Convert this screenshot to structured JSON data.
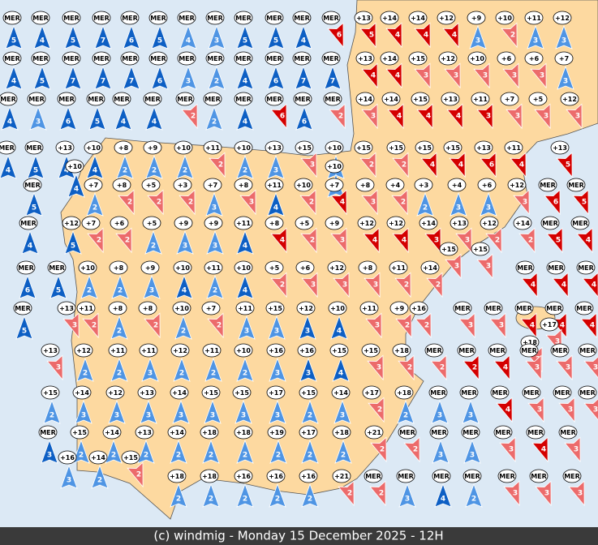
{
  "colors": [
    "#0d5fc4",
    "#4f95e4",
    "#ec6b6b",
    "#d40000"
  ],
  "rows": [
    [
      [
        "MER",
        5,
        0
      ],
      [
        "MER",
        4,
        0
      ],
      [
        "MER",
        5,
        0
      ],
      [
        "MER",
        7,
        0
      ],
      [
        "MER",
        6,
        0
      ],
      [
        "MER",
        5,
        0
      ],
      [
        "MER",
        4,
        1
      ],
      [
        "MER",
        3,
        1
      ],
      [
        "MER",
        5,
        0
      ],
      [
        "MER",
        5,
        0
      ],
      [
        "MER",
        4,
        0
      ],
      [
        "MER",
        6,
        3
      ],
      [
        "+13",
        5,
        3
      ],
      [
        "+14",
        4,
        3
      ],
      [
        "+14",
        4,
        3
      ],
      [
        "+12",
        4,
        3
      ],
      [
        "+9",
        3,
        1
      ],
      [
        "+10",
        2,
        2
      ],
      [
        "+11",
        3,
        1
      ],
      [
        "+12",
        3,
        1
      ]
    ],
    [
      [
        "MER",
        4,
        0
      ],
      [
        "MER",
        5,
        0
      ],
      [
        "MER",
        7,
        0
      ],
      [
        "MER",
        7,
        0
      ],
      [
        "MER",
        7,
        0
      ],
      [
        "MER",
        6,
        0
      ],
      [
        "MER",
        3,
        1
      ],
      [
        "MER",
        2,
        1
      ],
      [
        "MER",
        4,
        0
      ],
      [
        "MER",
        6,
        0
      ],
      [
        "MER",
        7,
        0
      ],
      [
        "MER",
        7,
        0
      ],
      [
        "+13",
        4,
        3
      ],
      [
        "+14",
        4,
        3
      ],
      [
        "+15",
        3,
        2
      ],
      [
        "+12",
        3,
        2
      ],
      [
        "+10",
        3,
        2
      ],
      [
        "+6",
        3,
        2
      ],
      [
        "+6",
        3,
        2
      ],
      [
        "+7",
        3,
        1
      ]
    ],
    [
      [
        "MER",
        4,
        0
      ],
      [
        "MER",
        3,
        1
      ],
      [
        "MER",
        6,
        0
      ],
      [
        "MER",
        5,
        0
      ],
      [
        "MER",
        4,
        0
      ],
      [
        "MER",
        4,
        0
      ],
      [
        "MER",
        2,
        2
      ],
      [
        "MER",
        2,
        1
      ],
      [
        "MER",
        4,
        0
      ],
      [
        "MER",
        6,
        3
      ],
      [
        "MER",
        6,
        0
      ],
      [
        "MER",
        2,
        2
      ],
      [
        "+14",
        3,
        2
      ],
      [
        "+14",
        4,
        3
      ],
      [
        "+15",
        4,
        3
      ],
      [
        "+13",
        4,
        3
      ],
      [
        "+11",
        3,
        3
      ],
      [
        "+7",
        3,
        2
      ],
      [
        "+5",
        3,
        2
      ],
      [
        "+12",
        3,
        2
      ]
    ],
    [
      [
        "MER",
        4,
        0
      ],
      [
        "MER",
        5,
        0
      ],
      [
        "+13",
        4,
        0
      ],
      [
        "+10",
        4,
        0
      ],
      [
        "+8",
        2,
        1
      ],
      [
        "+9",
        2,
        1
      ],
      [
        "+10",
        2,
        1
      ],
      [
        "+11",
        2,
        2
      ],
      [
        "+10",
        2,
        1
      ],
      [
        "+13",
        3,
        1
      ],
      [
        "+15",
        3,
        2
      ],
      [
        "+10",
        3,
        1
      ],
      [
        "+15",
        2,
        2
      ],
      [
        "+15",
        2,
        2
      ],
      [
        "+15",
        4,
        3
      ],
      [
        "+15",
        4,
        3
      ],
      [
        "+13",
        6,
        3
      ],
      [
        "+11",
        4,
        3
      ],
      [
        "+13",
        5,
        3
      ]
    ],
    [
      [
        "+10",
        4,
        0
      ],
      [
        "+10",
        3,
        1
      ]
    ],
    [
      [
        "MER",
        5,
        0
      ],
      [
        "+7",
        2,
        1
      ],
      [
        "+8",
        2,
        2
      ],
      [
        "+5",
        2,
        2
      ],
      [
        "+3",
        2,
        2
      ],
      [
        "+7",
        3,
        1
      ],
      [
        "+8",
        3,
        2
      ],
      [
        "+11",
        4,
        0
      ],
      [
        "+10",
        2,
        2
      ],
      [
        "+7",
        4,
        3
      ],
      [
        "+8",
        3,
        2
      ],
      [
        "+4",
        2,
        2
      ],
      [
        "+3",
        2,
        1
      ],
      [
        "+4",
        3,
        1
      ],
      [
        "+6",
        3,
        1
      ],
      [
        "+12",
        3,
        2
      ],
      [
        "MER",
        6,
        3
      ],
      [
        "MER",
        5,
        3
      ]
    ],
    [
      [
        "MER",
        4,
        0
      ],
      [
        "+12",
        5,
        0
      ],
      [
        "+7",
        2,
        2
      ],
      [
        "+6",
        2,
        2
      ],
      [
        "+5",
        2,
        1
      ],
      [
        "+9",
        3,
        1
      ],
      [
        "+9",
        3,
        1
      ],
      [
        "+11",
        4,
        0
      ],
      [
        "+8",
        4,
        3
      ],
      [
        "+5",
        2,
        2
      ],
      [
        "+9",
        3,
        2
      ],
      [
        "+12",
        4,
        3
      ],
      [
        "+12",
        4,
        3
      ],
      [
        "+14",
        3,
        3
      ],
      [
        "+13",
        3,
        2
      ],
      [
        "+12",
        2,
        2
      ],
      [
        "+14",
        2,
        2
      ],
      [
        "MER",
        5,
        3
      ],
      [
        "MER",
        4,
        3
      ]
    ],
    [
      [
        "+15",
        3,
        2
      ],
      [
        "+15",
        3,
        2
      ]
    ],
    [
      [
        "MER",
        6,
        0
      ],
      [
        "MER",
        5,
        0
      ],
      [
        "+10",
        2,
        1
      ],
      [
        "+8",
        2,
        1
      ],
      [
        "+9",
        3,
        1
      ],
      [
        "+10",
        4,
        0
      ],
      [
        "+11",
        2,
        1
      ],
      [
        "+10",
        4,
        0
      ],
      [
        "+5",
        2,
        2
      ],
      [
        "+6",
        3,
        2
      ],
      [
        "+12",
        3,
        2
      ],
      [
        "+8",
        3,
        2
      ],
      [
        "+11",
        2,
        2
      ],
      [
        "+14",
        2,
        2
      ],
      [
        "MER",
        4,
        3
      ],
      [
        "MER",
        4,
        3
      ],
      [
        "MER",
        4,
        3
      ]
    ],
    [
      [
        "MER",
        5,
        0
      ],
      [
        "+13",
        3,
        2
      ],
      [
        "+11",
        2,
        2
      ],
      [
        "+8",
        2,
        1
      ],
      [
        "+8",
        2,
        2
      ],
      [
        "+10",
        2,
        1
      ],
      [
        "+7",
        2,
        2
      ],
      [
        "+11",
        3,
        1
      ],
      [
        "+15",
        3,
        1
      ],
      [
        "+12",
        3,
        0
      ],
      [
        "+10",
        4,
        0
      ],
      [
        "+11",
        3,
        2
      ],
      [
        "+9",
        2,
        2
      ],
      [
        "+16",
        2,
        2
      ],
      [
        "MER",
        3,
        2
      ],
      [
        "MER",
        3,
        2
      ],
      [
        "MER",
        4,
        3
      ],
      [
        "MER",
        4,
        3
      ],
      [
        "MER",
        4,
        3
      ]
    ],
    [
      [
        "+17",
        3,
        2
      ]
    ],
    [
      [
        "+18",
        3,
        2
      ]
    ],
    [
      [
        "+13",
        3,
        2
      ],
      [
        "+12",
        2,
        1
      ],
      [
        "+11",
        2,
        1
      ],
      [
        "+11",
        3,
        1
      ],
      [
        "+12",
        2,
        1
      ],
      [
        "+11",
        2,
        1
      ],
      [
        "+10",
        2,
        1
      ],
      [
        "+16",
        3,
        1
      ],
      [
        "+16",
        3,
        0
      ],
      [
        "+15",
        4,
        0
      ],
      [
        "+15",
        3,
        2
      ],
      [
        "+18",
        2,
        2
      ],
      [
        "MER",
        2,
        2
      ],
      [
        "MER",
        2,
        3
      ],
      [
        "MER",
        4,
        3
      ],
      [
        "MER",
        3,
        2
      ],
      [
        "MER",
        3,
        2
      ],
      [
        "MER",
        3,
        2
      ]
    ],
    [
      [
        "+15",
        2,
        1
      ],
      [
        "+14",
        3,
        1
      ],
      [
        "+12",
        3,
        1
      ],
      [
        "+13",
        3,
        1
      ],
      [
        "+14",
        3,
        1
      ],
      [
        "+15",
        3,
        1
      ],
      [
        "+15",
        3,
        1
      ],
      [
        "+17",
        3,
        1
      ],
      [
        "+15",
        2,
        1
      ],
      [
        "+14",
        3,
        1
      ],
      [
        "+17",
        2,
        2
      ],
      [
        "+18",
        2,
        1
      ],
      [
        "MER",
        3,
        1
      ],
      [
        "MER",
        3,
        1
      ],
      [
        "MER",
        4,
        3
      ],
      [
        "MER",
        3,
        2
      ],
      [
        "MER",
        3,
        2
      ],
      [
        "MER",
        3,
        2
      ]
    ],
    [
      [
        "MER",
        3,
        0
      ],
      [
        "+15",
        2,
        1
      ],
      [
        "+14",
        2,
        1
      ],
      [
        "+13",
        2,
        1
      ],
      [
        "+14",
        2,
        1
      ],
      [
        "+18",
        2,
        1
      ],
      [
        "+18",
        2,
        1
      ],
      [
        "+19",
        2,
        1
      ],
      [
        "+17",
        2,
        1
      ],
      [
        "+18",
        2,
        1
      ],
      [
        "+21",
        2,
        2
      ],
      [
        "MER",
        2,
        2
      ],
      [
        "MER",
        3,
        1
      ],
      [
        "MER",
        3,
        1
      ],
      [
        "MER",
        3,
        2
      ],
      [
        "MER",
        4,
        3
      ],
      [
        "MER",
        3,
        2
      ]
    ],
    [
      [
        "+16",
        3,
        1
      ],
      [
        "+14",
        2,
        1
      ],
      [
        "+15",
        2,
        2
      ]
    ],
    [
      [
        "+18",
        2,
        1
      ],
      [
        "+18",
        2,
        1
      ],
      [
        "+16",
        2,
        1
      ],
      [
        "+16",
        2,
        1
      ],
      [
        "+16",
        2,
        1
      ],
      [
        "+21",
        2,
        2
      ],
      [
        "MER",
        2,
        2
      ],
      [
        "MER",
        3,
        1
      ],
      [
        "MER",
        4,
        0
      ],
      [
        "MER",
        2,
        1
      ],
      [
        "MER",
        3,
        2
      ],
      [
        "MER",
        3,
        2
      ],
      [
        "MER",
        3,
        2
      ]
    ]
  ],
  "footer": "(c) windmig - Monday 15 December 2025 - 12H"
}
